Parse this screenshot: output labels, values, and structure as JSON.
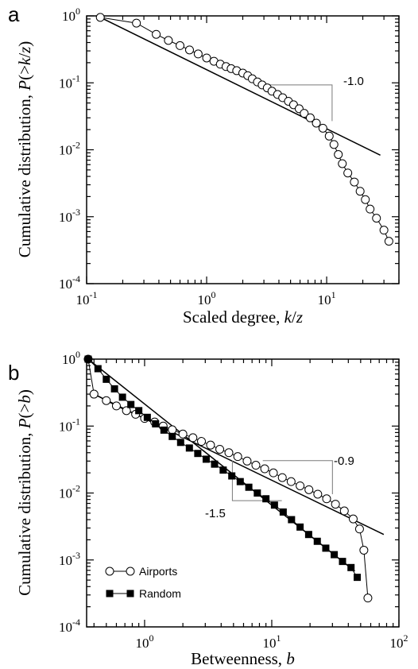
{
  "chart_data": [
    {
      "panel": "a",
      "type": "scatter",
      "xscale": "log",
      "yscale": "log",
      "xlim": [
        0.1,
        40
      ],
      "ylim": [
        0.0001,
        1
      ],
      "xlabel": "Scaled degree, k/z",
      "ylabel": "Cumulative distribution, P(>k/z)",
      "xticks": [
        {
          "value": 0.1,
          "base": "10",
          "exp": "-1"
        },
        {
          "value": 1,
          "base": "10",
          "exp": "0"
        },
        {
          "value": 10,
          "base": "10",
          "exp": "1"
        }
      ],
      "yticks": [
        {
          "value": 0.0001,
          "base": "10",
          "exp": "-4"
        },
        {
          "value": 0.001,
          "base": "10",
          "exp": "-3"
        },
        {
          "value": 0.01,
          "base": "10",
          "exp": "-2"
        },
        {
          "value": 0.1,
          "base": "10",
          "exp": "-1"
        },
        {
          "value": 1,
          "base": "10",
          "exp": "0"
        }
      ],
      "series": [
        {
          "marker": "open-circle",
          "points": [
            [
              0.13,
              0.95
            ],
            [
              0.26,
              0.78
            ],
            [
              0.38,
              0.53
            ],
            [
              0.48,
              0.43
            ],
            [
              0.6,
              0.36
            ],
            [
              0.72,
              0.31
            ],
            [
              0.85,
              0.27
            ],
            [
              1.0,
              0.235
            ],
            [
              1.15,
              0.21
            ],
            [
              1.3,
              0.19
            ],
            [
              1.45,
              0.175
            ],
            [
              1.6,
              0.163
            ],
            [
              1.78,
              0.152
            ],
            [
              2.0,
              0.14
            ],
            [
              2.2,
              0.128
            ],
            [
              2.4,
              0.115
            ],
            [
              2.65,
              0.103
            ],
            [
              2.9,
              0.093
            ],
            [
              3.2,
              0.084
            ],
            [
              3.5,
              0.075
            ],
            [
              3.9,
              0.067
            ],
            [
              4.3,
              0.06
            ],
            [
              4.8,
              0.053
            ],
            [
              5.3,
              0.047
            ],
            [
              5.9,
              0.041
            ],
            [
              6.5,
              0.035
            ],
            [
              7.3,
              0.03
            ],
            [
              8.2,
              0.025
            ],
            [
              9.3,
              0.021
            ],
            [
              10.5,
              0.016
            ],
            [
              11.5,
              0.012
            ],
            [
              12.5,
              0.0085
            ],
            [
              13.5,
              0.0062
            ],
            [
              15.0,
              0.0045
            ],
            [
              17.0,
              0.0033
            ],
            [
              19.0,
              0.0024
            ],
            [
              21.0,
              0.0018
            ],
            [
              23.0,
              0.0013
            ],
            [
              26.0,
              0.00095
            ],
            [
              30.0,
              0.00063
            ],
            [
              33.0,
              0.00043
            ]
          ]
        }
      ],
      "fit_lines": [
        {
          "from": [
            0.13,
            0.95
          ],
          "to": [
            28,
            0.0083
          ]
        }
      ],
      "slope_annotations": [
        {
          "text": "-1.0",
          "triangle": [
            [
              3.2,
              0.093
            ],
            [
              11.1,
              0.093
            ],
            [
              11.1,
              0.0268
            ]
          ]
        }
      ]
    },
    {
      "panel": "b",
      "type": "line",
      "xscale": "log",
      "yscale": "log",
      "xlim": [
        0.35,
        100
      ],
      "ylim": [
        0.0001,
        1
      ],
      "xlabel": "Betweenness, b",
      "ylabel": "Cumulative distribution, P(>b)",
      "xticks": [
        {
          "value": 1,
          "base": "10",
          "exp": "0"
        },
        {
          "value": 10,
          "base": "10",
          "exp": "1"
        },
        {
          "value": 100,
          "base": "10",
          "exp": "2"
        }
      ],
      "yticks": [
        {
          "value": 0.0001,
          "base": "10",
          "exp": "-4"
        },
        {
          "value": 0.001,
          "base": "10",
          "exp": "-3"
        },
        {
          "value": 0.01,
          "base": "10",
          "exp": "-2"
        },
        {
          "value": 0.1,
          "base": "10",
          "exp": "-1"
        },
        {
          "value": 1,
          "base": "10",
          "exp": "0"
        }
      ],
      "series": [
        {
          "name": "Airports",
          "marker": "open-circle",
          "points": [
            [
              0.36,
              1.0
            ],
            [
              0.4,
              0.3
            ],
            [
              0.5,
              0.24
            ],
            [
              0.6,
              0.2
            ],
            [
              0.72,
              0.17
            ],
            [
              0.85,
              0.15
            ],
            [
              1.0,
              0.13
            ],
            [
              1.2,
              0.115
            ],
            [
              1.4,
              0.1
            ],
            [
              1.65,
              0.088
            ],
            [
              2.0,
              0.076
            ],
            [
              2.4,
              0.067
            ],
            [
              2.8,
              0.059
            ],
            [
              3.3,
              0.052
            ],
            [
              3.9,
              0.045
            ],
            [
              4.6,
              0.04
            ],
            [
              5.4,
              0.035
            ],
            [
              6.4,
              0.03
            ],
            [
              7.5,
              0.026
            ],
            [
              8.8,
              0.023
            ],
            [
              10.3,
              0.02
            ],
            [
              12.1,
              0.017
            ],
            [
              14.2,
              0.0148
            ],
            [
              16.7,
              0.0128
            ],
            [
              19.6,
              0.0112
            ],
            [
              23.0,
              0.0096
            ],
            [
              27.0,
              0.0082
            ],
            [
              31.7,
              0.0068
            ],
            [
              37.2,
              0.0054
            ],
            [
              43.7,
              0.0041
            ],
            [
              49.0,
              0.0029
            ],
            [
              53.0,
              0.0014
            ],
            [
              57.0,
              0.00027
            ]
          ]
        },
        {
          "name": "Random",
          "marker": "filled-square",
          "points": [
            [
              0.36,
              1.0
            ],
            [
              0.43,
              0.72
            ],
            [
              0.5,
              0.5
            ],
            [
              0.58,
              0.36
            ],
            [
              0.67,
              0.27
            ],
            [
              0.78,
              0.21
            ],
            [
              0.9,
              0.17
            ],
            [
              1.05,
              0.135
            ],
            [
              1.22,
              0.108
            ],
            [
              1.42,
              0.087
            ],
            [
              1.65,
              0.07
            ],
            [
              1.92,
              0.057
            ],
            [
              2.25,
              0.047
            ],
            [
              2.62,
              0.039
            ],
            [
              3.05,
              0.032
            ],
            [
              3.55,
              0.027
            ],
            [
              4.15,
              0.022
            ],
            [
              4.85,
              0.018
            ],
            [
              5.65,
              0.0148
            ],
            [
              6.6,
              0.0122
            ],
            [
              7.7,
              0.01
            ],
            [
              9.0,
              0.0082
            ],
            [
              10.5,
              0.0066
            ],
            [
              12.3,
              0.0052
            ],
            [
              14.3,
              0.004
            ],
            [
              16.7,
              0.0031
            ],
            [
              19.5,
              0.0024
            ],
            [
              22.8,
              0.0019
            ],
            [
              26.6,
              0.0015
            ],
            [
              31.0,
              0.0012
            ],
            [
              36.0,
              0.00095
            ],
            [
              42.0,
              0.00077
            ],
            [
              47.0,
              0.00055
            ]
          ]
        }
      ],
      "fit_lines": [
        {
          "from": [
            0.4,
            0.3
          ],
          "to": [
            76,
            0.0024
          ]
        },
        {
          "from": [
            0.36,
            1.0
          ],
          "to": [
            45,
            0.00068
          ]
        }
      ],
      "slope_annotations": [
        {
          "text": "-0.9",
          "triangle": [
            [
              8.5,
              0.0305
            ],
            [
              30,
              0.0305
            ],
            [
              30,
              0.0096
            ]
          ]
        },
        {
          "text": "-1.5",
          "triangle": [
            [
              4.9,
              0.0305
            ],
            [
              4.9,
              0.0077
            ],
            [
              12.0,
              0.0077
            ]
          ]
        }
      ],
      "legend": {
        "placement": "bottom-left",
        "entries": [
          {
            "label": "Airports",
            "marker": "open-circle"
          },
          {
            "label": "Random",
            "marker": "filled-square"
          }
        ]
      }
    }
  ],
  "figure": {
    "panel_letters": [
      "a",
      "b"
    ]
  }
}
